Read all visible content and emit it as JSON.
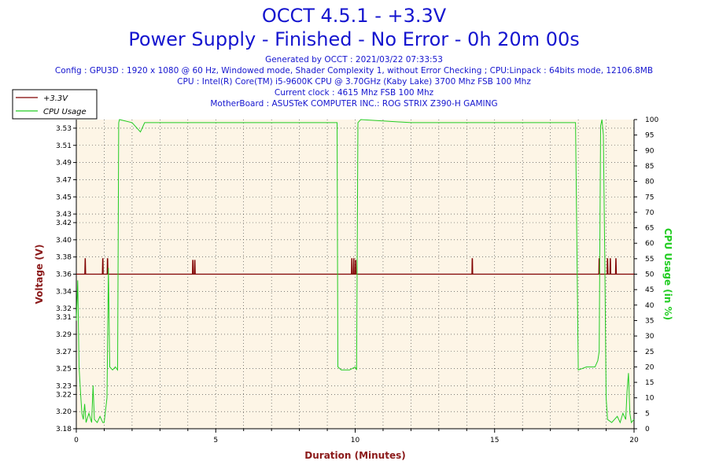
{
  "chart_data": {
    "type": "line",
    "title": "OCCT 4.5.1 - +3.3V",
    "subtitle": "Power Supply - Finished - No Error - 0h 20m 00s",
    "info_lines": [
      "Generated by OCCT : 2021/03/22 07:33:53",
      "Config : GPU3D : 1920 x 1080 @ 60 Hz, Windowed mode, Shader Complexity 1, without Error Checking ; CPU:Linpack : 64bits mode, 12106.8MB",
      "CPU : Intel(R) Core(TM) i5-9600K CPU @ 3.70GHz (Kaby Lake) 3700 Mhz FSB 100 Mhz",
      "Current clock : 4615 Mhz FSB 100 Mhz",
      "MotherBoard : ASUSTeK COMPUTER INC.: ROG STRIX Z390-H GAMING"
    ],
    "xlabel": "Duration (Minutes)",
    "ylabel": "Voltage (V)",
    "y2label": "CPU Usage (in %)",
    "xlim": [
      0,
      20
    ],
    "ylim": [
      3.18,
      3.54
    ],
    "y2lim": [
      0,
      100
    ],
    "x_ticks": [
      0,
      5,
      10,
      15,
      20
    ],
    "y_ticks": [
      "3.18",
      "3.20",
      "3.22",
      "3.23",
      "3.25",
      "3.27",
      "3.29",
      "3.31",
      "3.32",
      "3.34",
      "3.36",
      "3.38",
      "3.40",
      "3.42",
      "3.43",
      "3.45",
      "3.47",
      "3.49",
      "3.51",
      "3.53"
    ],
    "y2_ticks": [
      0,
      5,
      10,
      15,
      20,
      25,
      30,
      35,
      40,
      45,
      50,
      55,
      60,
      65,
      70,
      75,
      80,
      85,
      90,
      95,
      100
    ],
    "grid": true,
    "legend_position": "top-left",
    "colors": {
      "voltage": "#800000",
      "cpu": "#22cc22",
      "plot_bg": "#fdf5e6",
      "text": "#1515cf",
      "voltage_axis": "#8b1a1a",
      "cpu_axis": "#22cc22"
    },
    "series": [
      {
        "name": "+3.3V",
        "axis": "left",
        "baseline": 3.36,
        "spikes": [
          {
            "x": 0.32,
            "y": 3.378
          },
          {
            "x": 0.95,
            "y": 3.378
          },
          {
            "x": 1.12,
            "y": 3.378
          },
          {
            "x": 4.18,
            "y": 3.376
          },
          {
            "x": 4.25,
            "y": 3.376
          },
          {
            "x": 9.88,
            "y": 3.378
          },
          {
            "x": 9.95,
            "y": 3.378
          },
          {
            "x": 10.02,
            "y": 3.376
          },
          {
            "x": 14.2,
            "y": 3.378
          },
          {
            "x": 18.75,
            "y": 3.378
          },
          {
            "x": 19.05,
            "y": 3.378
          },
          {
            "x": 19.15,
            "y": 3.378
          },
          {
            "x": 19.35,
            "y": 3.378
          }
        ]
      },
      {
        "name": "CPU Usage",
        "axis": "right",
        "points": [
          [
            0,
            35
          ],
          [
            0.05,
            48
          ],
          [
            0.1,
            20
          ],
          [
            0.15,
            12
          ],
          [
            0.2,
            5
          ],
          [
            0.25,
            3
          ],
          [
            0.3,
            8
          ],
          [
            0.35,
            2
          ],
          [
            0.45,
            5
          ],
          [
            0.55,
            2
          ],
          [
            0.6,
            14
          ],
          [
            0.65,
            3
          ],
          [
            0.75,
            2
          ],
          [
            0.85,
            4
          ],
          [
            0.95,
            2
          ],
          [
            1.0,
            2
          ],
          [
            1.1,
            10
          ],
          [
            1.15,
            52
          ],
          [
            1.2,
            20
          ],
          [
            1.3,
            19
          ],
          [
            1.4,
            20
          ],
          [
            1.48,
            19
          ],
          [
            1.52,
            99
          ],
          [
            1.55,
            100
          ],
          [
            2.0,
            99
          ],
          [
            2.2,
            97
          ],
          [
            2.3,
            96
          ],
          [
            2.45,
            99
          ],
          [
            3.0,
            99
          ],
          [
            5.0,
            99
          ],
          [
            7.0,
            99
          ],
          [
            9.0,
            99
          ],
          [
            9.35,
            99
          ],
          [
            9.38,
            20
          ],
          [
            9.5,
            19
          ],
          [
            9.8,
            19
          ],
          [
            10.0,
            20
          ],
          [
            10.05,
            19
          ],
          [
            10.1,
            99
          ],
          [
            10.2,
            100
          ],
          [
            12.0,
            99
          ],
          [
            14.0,
            99
          ],
          [
            16.0,
            99
          ],
          [
            17.9,
            99
          ],
          [
            18.0,
            19
          ],
          [
            18.3,
            20
          ],
          [
            18.6,
            20
          ],
          [
            18.7,
            22
          ],
          [
            18.75,
            25
          ],
          [
            18.8,
            98
          ],
          [
            18.85,
            100
          ],
          [
            18.9,
            95
          ],
          [
            18.95,
            55
          ],
          [
            19.0,
            10
          ],
          [
            19.05,
            3
          ],
          [
            19.2,
            2
          ],
          [
            19.4,
            4
          ],
          [
            19.5,
            2
          ],
          [
            19.6,
            5
          ],
          [
            19.7,
            3
          ],
          [
            19.75,
            12
          ],
          [
            19.8,
            18
          ],
          [
            19.85,
            5
          ],
          [
            19.9,
            2
          ],
          [
            20.0,
            3
          ]
        ]
      }
    ]
  }
}
